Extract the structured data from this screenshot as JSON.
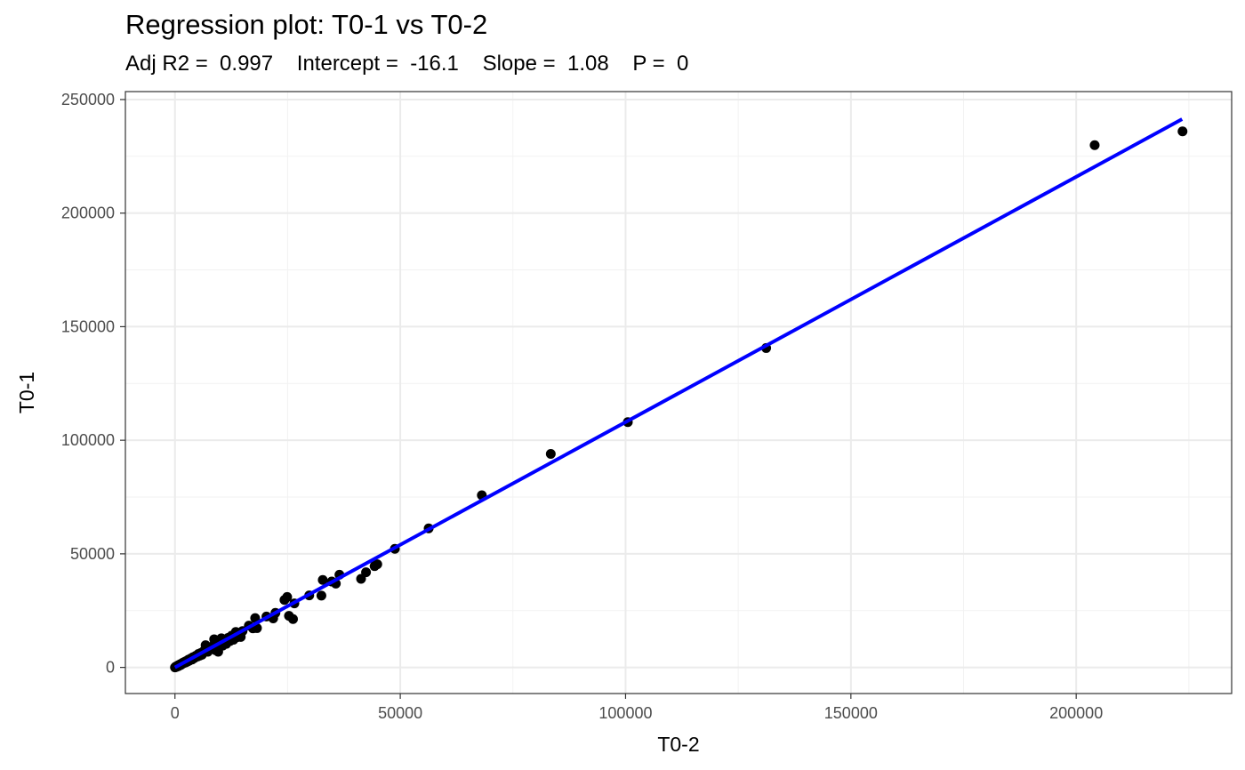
{
  "chart_data": {
    "type": "scatter",
    "title": "Regression plot: T0-1 vs T0-2",
    "subtitle": "Adj R2 =  0.997    Intercept =  -16.1    Slope =  1.08    P =  0",
    "xlabel": "T0-2",
    "ylabel": "T0-1",
    "xlim": [
      -11000,
      234500
    ],
    "ylim": [
      -11500,
      253500
    ],
    "xticks": [
      0,
      50000,
      100000,
      150000,
      200000
    ],
    "yticks": [
      0,
      50000,
      100000,
      150000,
      200000,
      250000
    ],
    "grid": true,
    "fit_line": {
      "intercept": -16.1,
      "slope": 1.08,
      "x_range": [
        0,
        223500
      ],
      "color": "#0000ff"
    },
    "point_color": "#000000",
    "points": [
      [
        0,
        0
      ],
      [
        100,
        150
      ],
      [
        200,
        350
      ],
      [
        300,
        200
      ],
      [
        400,
        500
      ],
      [
        500,
        400
      ],
      [
        600,
        800
      ],
      [
        800,
        600
      ],
      [
        900,
        1100
      ],
      [
        1000,
        1000
      ],
      [
        1200,
        1400
      ],
      [
        1300,
        1100
      ],
      [
        1500,
        1700
      ],
      [
        1600,
        1500
      ],
      [
        1800,
        2100
      ],
      [
        2000,
        1900
      ],
      [
        2200,
        2500
      ],
      [
        2400,
        2200
      ],
      [
        2600,
        2900
      ],
      [
        2800,
        2600
      ],
      [
        3000,
        3400
      ],
      [
        3200,
        3000
      ],
      [
        3500,
        3900
      ],
      [
        3800,
        3500
      ],
      [
        4000,
        4500
      ],
      [
        4300,
        4100
      ],
      [
        4600,
        5100
      ],
      [
        5000,
        4800
      ],
      [
        5200,
        5900
      ],
      [
        5500,
        5200
      ],
      [
        5800,
        6400
      ],
      [
        6000,
        5600
      ],
      [
        6400,
        7200
      ],
      [
        6800,
        9800
      ],
      [
        7000,
        7800
      ],
      [
        7300,
        6900
      ],
      [
        7600,
        8600
      ],
      [
        8000,
        8200
      ],
      [
        8400,
        9400
      ],
      [
        8700,
        12400
      ],
      [
        9000,
        7600
      ],
      [
        9300,
        10200
      ],
      [
        9600,
        6900
      ],
      [
        10000,
        11200
      ],
      [
        10300,
        12800
      ],
      [
        10600,
        9600
      ],
      [
        11000,
        12300
      ],
      [
        11400,
        10400
      ],
      [
        11800,
        13000
      ],
      [
        12200,
        11600
      ],
      [
        12600,
        14000
      ],
      [
        13000,
        12200
      ],
      [
        13500,
        15600
      ],
      [
        13800,
        13300
      ],
      [
        14200,
        14700
      ],
      [
        14600,
        13400
      ],
      [
        15000,
        16000
      ],
      [
        16400,
        18400
      ],
      [
        17300,
        17200
      ],
      [
        17800,
        21700
      ],
      [
        18200,
        17300
      ],
      [
        20300,
        22400
      ],
      [
        21800,
        21600
      ],
      [
        22300,
        24000
      ],
      [
        24300,
        29700
      ],
      [
        24900,
        31000
      ],
      [
        25300,
        22700
      ],
      [
        26200,
        21300
      ],
      [
        26500,
        28200
      ],
      [
        29800,
        31700
      ],
      [
        32500,
        31600
      ],
      [
        32800,
        38500
      ],
      [
        34800,
        37800
      ],
      [
        35700,
        36900
      ],
      [
        36500,
        40800
      ],
      [
        41300,
        39000
      ],
      [
        42400,
        41900
      ],
      [
        44300,
        44600
      ],
      [
        44900,
        45400
      ],
      [
        48800,
        52200
      ],
      [
        56300,
        61200
      ],
      [
        68100,
        75800
      ],
      [
        83400,
        94000
      ],
      [
        100500,
        108000
      ],
      [
        131200,
        140600
      ],
      [
        204100,
        229900
      ],
      [
        223600,
        236000
      ]
    ]
  }
}
